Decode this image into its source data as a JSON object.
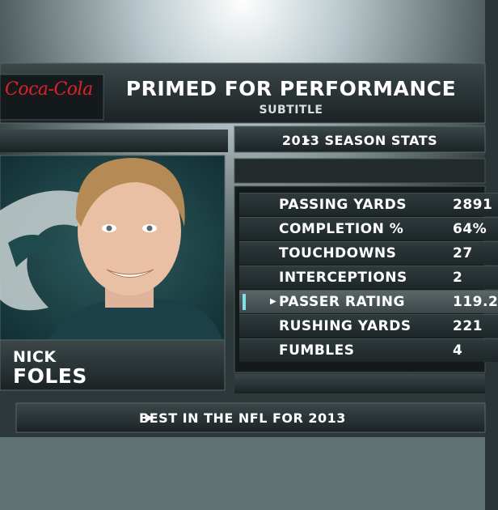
{
  "header": {
    "logo": "Coca-Cola",
    "title": "PRIMED FOR PERFORMANCE",
    "subtitle": "SUBTITLE"
  },
  "player": {
    "first_name": "NICK",
    "last_name": "FOLES"
  },
  "stats": {
    "heading": "2013 SEASON STATS",
    "rows": [
      {
        "label": "PASSING YARDS",
        "value": "2891"
      },
      {
        "label": "COMPLETION %",
        "value": "64%"
      },
      {
        "label": "TOUCHDOWNS",
        "value": "27"
      },
      {
        "label": "INTERCEPTIONS",
        "value": "2"
      },
      {
        "label": "PASSER RATING",
        "value": "119.2"
      },
      {
        "label": "RUSHING YARDS",
        "value": "221"
      },
      {
        "label": "FUMBLES",
        "value": "4"
      }
    ]
  },
  "footer": {
    "text": "BEST IN THE NFL FOR 2013"
  }
}
